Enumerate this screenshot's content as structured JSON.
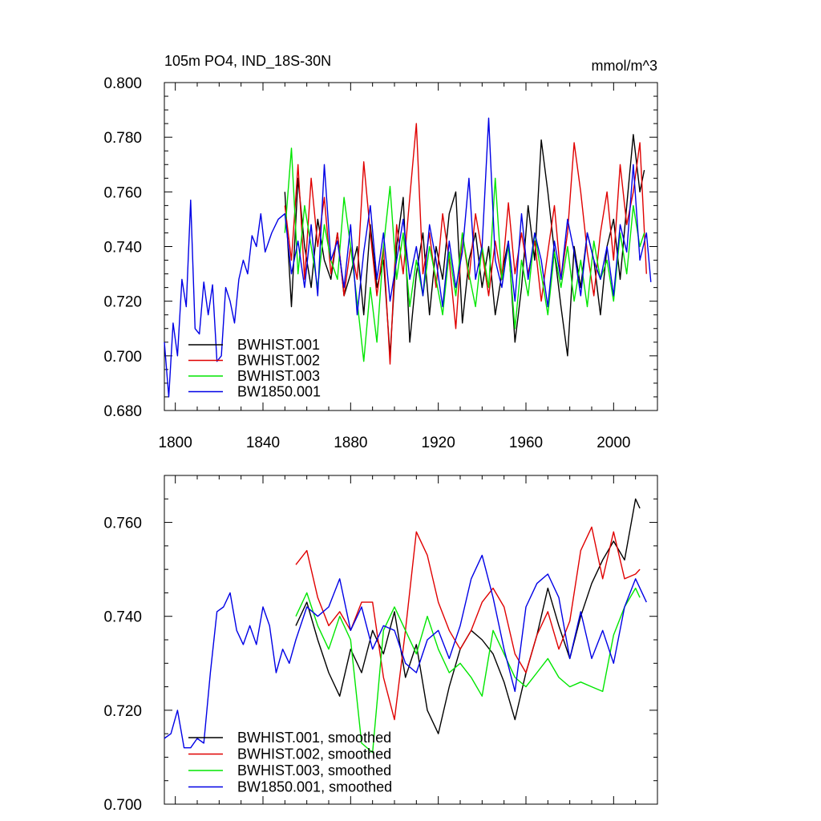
{
  "chart_data": [
    {
      "type": "line",
      "title": "105m PO4, IND_18S-30N",
      "units": "mmol/m^3",
      "xlim": [
        1795,
        2020
      ],
      "ylim": [
        0.68,
        0.8
      ],
      "xticks": [
        1800,
        1840,
        1880,
        1920,
        1960,
        2000
      ],
      "xtick_labels": [
        "1800",
        "1840",
        "1880",
        "1920",
        "1960",
        "2000"
      ],
      "yticks": [
        0.68,
        0.7,
        0.72,
        0.74,
        0.76,
        0.78,
        0.8
      ],
      "ytick_labels": [
        "0.680",
        "0.700",
        "0.720",
        "0.740",
        "0.760",
        "0.780",
        "0.800"
      ],
      "legend_position": "bottom-left",
      "series": [
        {
          "name": "BWHIST.001",
          "color": "#000000",
          "x": [
            1850,
            1853,
            1856,
            1859,
            1862,
            1865,
            1868,
            1871,
            1874,
            1877,
            1880,
            1883,
            1886,
            1889,
            1892,
            1895,
            1898,
            1901,
            1904,
            1907,
            1910,
            1913,
            1916,
            1919,
            1922,
            1925,
            1928,
            1931,
            1934,
            1937,
            1940,
            1943,
            1946,
            1949,
            1952,
            1955,
            1958,
            1961,
            1964,
            1967,
            1970,
            1973,
            1976,
            1979,
            1982,
            1985,
            1988,
            1991,
            1994,
            1997,
            2000,
            2003,
            2006,
            2009,
            2012,
            2014
          ],
          "y": [
            0.76,
            0.718,
            0.765,
            0.74,
            0.725,
            0.75,
            0.735,
            0.728,
            0.745,
            0.722,
            0.73,
            0.74,
            0.715,
            0.748,
            0.725,
            0.735,
            0.7,
            0.74,
            0.758,
            0.705,
            0.73,
            0.745,
            0.715,
            0.74,
            0.728,
            0.752,
            0.76,
            0.712,
            0.735,
            0.745,
            0.725,
            0.74,
            0.715,
            0.73,
            0.742,
            0.705,
            0.725,
            0.755,
            0.735,
            0.779,
            0.76,
            0.738,
            0.718,
            0.7,
            0.74,
            0.725,
            0.745,
            0.735,
            0.715,
            0.74,
            0.75,
            0.728,
            0.755,
            0.781,
            0.76,
            0.768
          ]
        },
        {
          "name": "BWHIST.002",
          "color": "#e00000",
          "x": [
            1850,
            1853,
            1856,
            1859,
            1862,
            1865,
            1868,
            1871,
            1874,
            1877,
            1880,
            1883,
            1886,
            1889,
            1892,
            1895,
            1898,
            1901,
            1904,
            1907,
            1910,
            1913,
            1916,
            1919,
            1922,
            1925,
            1928,
            1931,
            1934,
            1937,
            1940,
            1943,
            1946,
            1949,
            1952,
            1955,
            1958,
            1961,
            1964,
            1967,
            1970,
            1973,
            1976,
            1979,
            1982,
            1985,
            1988,
            1991,
            1994,
            1997,
            2000,
            2003,
            2006,
            2009,
            2012,
            2015
          ],
          "y": [
            0.755,
            0.735,
            0.77,
            0.728,
            0.765,
            0.74,
            0.758,
            0.73,
            0.745,
            0.722,
            0.74,
            0.728,
            0.771,
            0.745,
            0.722,
            0.74,
            0.697,
            0.748,
            0.73,
            0.758,
            0.785,
            0.73,
            0.745,
            0.725,
            0.752,
            0.735,
            0.71,
            0.745,
            0.728,
            0.752,
            0.738,
            0.722,
            0.742,
            0.728,
            0.756,
            0.73,
            0.745,
            0.73,
            0.742,
            0.72,
            0.738,
            0.755,
            0.728,
            0.745,
            0.778,
            0.76,
            0.738,
            0.722,
            0.745,
            0.76,
            0.735,
            0.77,
            0.748,
            0.76,
            0.778,
            0.73
          ]
        },
        {
          "name": "BWHIST.003",
          "color": "#00e600",
          "x": [
            1850,
            1853,
            1856,
            1859,
            1862,
            1865,
            1868,
            1871,
            1874,
            1877,
            1880,
            1883,
            1886,
            1889,
            1892,
            1895,
            1898,
            1901,
            1904,
            1907,
            1910,
            1913,
            1916,
            1919,
            1922,
            1925,
            1928,
            1931,
            1934,
            1937,
            1940,
            1943,
            1946,
            1949,
            1952,
            1955,
            1958,
            1961,
            1964,
            1967,
            1970,
            1973,
            1976,
            1979,
            1982,
            1985,
            1988,
            1991,
            1994,
            1997,
            2000,
            2003,
            2006,
            2009,
            2012,
            2014
          ],
          "y": [
            0.745,
            0.776,
            0.73,
            0.755,
            0.74,
            0.725,
            0.748,
            0.735,
            0.728,
            0.758,
            0.74,
            0.72,
            0.698,
            0.725,
            0.705,
            0.74,
            0.762,
            0.728,
            0.745,
            0.718,
            0.735,
            0.722,
            0.74,
            0.728,
            0.715,
            0.738,
            0.722,
            0.745,
            0.73,
            0.718,
            0.74,
            0.725,
            0.765,
            0.728,
            0.74,
            0.71,
            0.735,
            0.722,
            0.745,
            0.73,
            0.715,
            0.738,
            0.725,
            0.74,
            0.72,
            0.735,
            0.718,
            0.742,
            0.728,
            0.735,
            0.72,
            0.745,
            0.73,
            0.755,
            0.74,
            0.745
          ]
        },
        {
          "name": "BW1850.001",
          "color": "#0000e6",
          "x": [
            1795,
            1797,
            1799,
            1801,
            1803,
            1805,
            1807,
            1809,
            1811,
            1813,
            1815,
            1817,
            1819,
            1821,
            1823,
            1825,
            1827,
            1829,
            1831,
            1833,
            1835,
            1837,
            1839,
            1841,
            1844,
            1847,
            1850,
            1853,
            1856,
            1859,
            1862,
            1865,
            1868,
            1871,
            1874,
            1877,
            1880,
            1883,
            1886,
            1889,
            1892,
            1895,
            1898,
            1901,
            1904,
            1907,
            1910,
            1913,
            1916,
            1919,
            1922,
            1925,
            1928,
            1931,
            1934,
            1937,
            1940,
            1943,
            1946,
            1949,
            1952,
            1955,
            1958,
            1961,
            1964,
            1967,
            1970,
            1973,
            1976,
            1979,
            1982,
            1985,
            1988,
            1991,
            1994,
            1997,
            2000,
            2003,
            2006,
            2009,
            2012,
            2015,
            2017
          ],
          "y": [
            0.705,
            0.685,
            0.712,
            0.7,
            0.728,
            0.718,
            0.757,
            0.71,
            0.708,
            0.727,
            0.715,
            0.726,
            0.698,
            0.7,
            0.725,
            0.72,
            0.712,
            0.728,
            0.735,
            0.73,
            0.744,
            0.74,
            0.752,
            0.738,
            0.745,
            0.75,
            0.752,
            0.73,
            0.742,
            0.725,
            0.748,
            0.722,
            0.77,
            0.735,
            0.742,
            0.725,
            0.748,
            0.715,
            0.738,
            0.755,
            0.728,
            0.745,
            0.72,
            0.735,
            0.75,
            0.728,
            0.74,
            0.722,
            0.748,
            0.735,
            0.718,
            0.742,
            0.725,
            0.738,
            0.765,
            0.728,
            0.74,
            0.787,
            0.735,
            0.725,
            0.742,
            0.72,
            0.752,
            0.728,
            0.745,
            0.735,
            0.718,
            0.742,
            0.728,
            0.75,
            0.738,
            0.722,
            0.745,
            0.735,
            0.728,
            0.74,
            0.722,
            0.748,
            0.738,
            0.77,
            0.735,
            0.745,
            0.727
          ]
        }
      ]
    },
    {
      "type": "line",
      "xlim": [
        1795,
        2020
      ],
      "ylim": [
        0.7,
        0.77
      ],
      "xticks": [
        1800,
        1840,
        1880,
        1920,
        1960,
        2000
      ],
      "yticks": [
        0.7,
        0.72,
        0.74,
        0.76
      ],
      "ytick_labels": [
        "0.700",
        "0.720",
        "0.740",
        "0.760"
      ],
      "legend_position": "bottom-left",
      "series": [
        {
          "name": "BWHIST.001, smoothed",
          "color": "#000000",
          "x": [
            1855,
            1860,
            1865,
            1870,
            1875,
            1880,
            1885,
            1890,
            1895,
            1900,
            1905,
            1910,
            1915,
            1920,
            1925,
            1930,
            1935,
            1940,
            1945,
            1950,
            1955,
            1960,
            1965,
            1970,
            1975,
            1980,
            1985,
            1990,
            1995,
            2000,
            2005,
            2010,
            2012
          ],
          "y": [
            0.738,
            0.743,
            0.735,
            0.728,
            0.723,
            0.733,
            0.728,
            0.737,
            0.732,
            0.741,
            0.727,
            0.734,
            0.72,
            0.715,
            0.725,
            0.733,
            0.737,
            0.735,
            0.732,
            0.726,
            0.718,
            0.728,
            0.736,
            0.746,
            0.738,
            0.731,
            0.74,
            0.747,
            0.752,
            0.756,
            0.752,
            0.765,
            0.763
          ]
        },
        {
          "name": "BWHIST.002, smoothed",
          "color": "#e00000",
          "x": [
            1855,
            1860,
            1865,
            1870,
            1875,
            1880,
            1885,
            1890,
            1895,
            1900,
            1905,
            1910,
            1915,
            1920,
            1925,
            1930,
            1935,
            1940,
            1945,
            1950,
            1955,
            1960,
            1965,
            1970,
            1975,
            1980,
            1985,
            1990,
            1995,
            2000,
            2005,
            2010,
            2012
          ],
          "y": [
            0.751,
            0.754,
            0.744,
            0.738,
            0.741,
            0.737,
            0.743,
            0.743,
            0.727,
            0.718,
            0.737,
            0.758,
            0.753,
            0.743,
            0.737,
            0.733,
            0.737,
            0.743,
            0.746,
            0.742,
            0.732,
            0.728,
            0.736,
            0.741,
            0.733,
            0.739,
            0.754,
            0.759,
            0.748,
            0.758,
            0.748,
            0.749,
            0.75
          ]
        },
        {
          "name": "BWHIST.003, smoothed",
          "color": "#00e600",
          "x": [
            1855,
            1860,
            1865,
            1870,
            1875,
            1880,
            1885,
            1890,
            1895,
            1900,
            1905,
            1910,
            1915,
            1920,
            1925,
            1930,
            1935,
            1940,
            1945,
            1950,
            1955,
            1960,
            1965,
            1970,
            1975,
            1980,
            1985,
            1990,
            1995,
            2000,
            2005,
            2010,
            2012
          ],
          "y": [
            0.74,
            0.745,
            0.738,
            0.733,
            0.74,
            0.735,
            0.713,
            0.711,
            0.737,
            0.742,
            0.737,
            0.732,
            0.74,
            0.733,
            0.728,
            0.73,
            0.727,
            0.723,
            0.737,
            0.732,
            0.727,
            0.725,
            0.728,
            0.731,
            0.727,
            0.725,
            0.726,
            0.725,
            0.724,
            0.736,
            0.742,
            0.746,
            0.744
          ]
        },
        {
          "name": "BW1850.001, smoothed",
          "color": "#0000e6",
          "x": [
            1795,
            1798,
            1801,
            1804,
            1807,
            1810,
            1813,
            1816,
            1819,
            1822,
            1825,
            1828,
            1831,
            1834,
            1837,
            1840,
            1843,
            1846,
            1849,
            1852,
            1855,
            1860,
            1865,
            1870,
            1875,
            1880,
            1885,
            1890,
            1895,
            1900,
            1905,
            1910,
            1915,
            1920,
            1925,
            1930,
            1935,
            1940,
            1945,
            1950,
            1955,
            1960,
            1965,
            1970,
            1975,
            1980,
            1985,
            1990,
            1995,
            2000,
            2005,
            2010,
            2015
          ],
          "y": [
            0.714,
            0.715,
            0.72,
            0.712,
            0.712,
            0.714,
            0.713,
            0.728,
            0.741,
            0.742,
            0.745,
            0.737,
            0.734,
            0.738,
            0.734,
            0.742,
            0.738,
            0.728,
            0.733,
            0.73,
            0.735,
            0.742,
            0.74,
            0.742,
            0.748,
            0.737,
            0.742,
            0.733,
            0.738,
            0.737,
            0.73,
            0.728,
            0.735,
            0.737,
            0.731,
            0.738,
            0.748,
            0.753,
            0.744,
            0.733,
            0.724,
            0.742,
            0.747,
            0.749,
            0.744,
            0.731,
            0.741,
            0.731,
            0.737,
            0.73,
            0.742,
            0.748,
            0.743
          ]
        }
      ]
    }
  ]
}
